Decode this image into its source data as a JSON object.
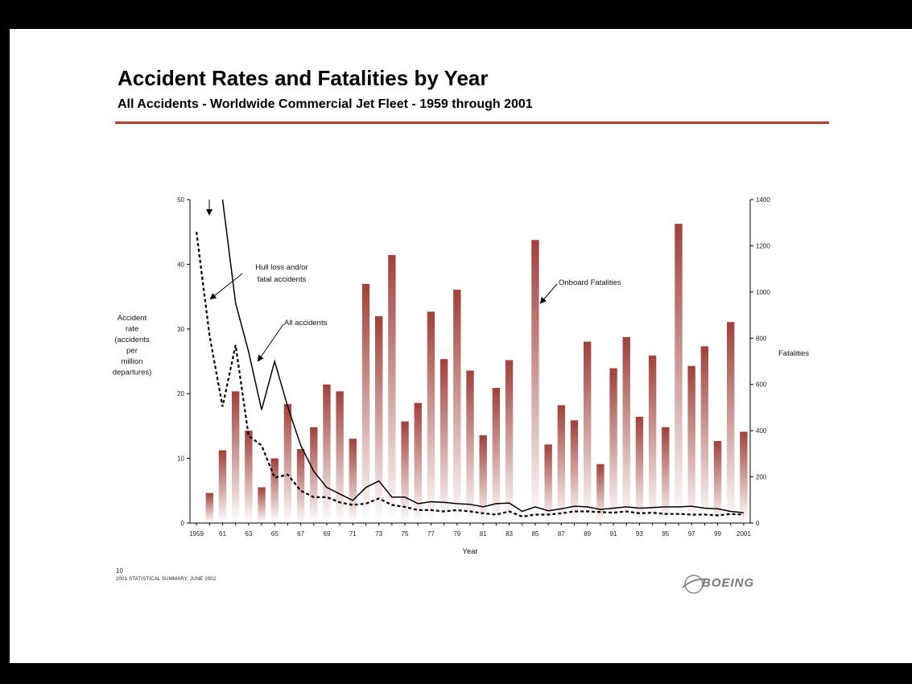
{
  "title": "Accident Rates and Fatalities by Year",
  "subtitle": "All Accidents - Worldwide Commercial Jet Fleet - 1959 through 2001",
  "footer": {
    "page": "10",
    "source": "2001 STATISTICAL SUMMARY, JUNE 2002",
    "logo_text": "BOEING"
  },
  "colors": {
    "accent": "#c0392b",
    "bar": "#a0413a",
    "line": "#000000"
  },
  "chart_data": {
    "type": "bar",
    "xlabel": "Year",
    "ylabel_left": [
      "Accident",
      "rate",
      "(accidents",
      "per",
      "million",
      "departures)"
    ],
    "ylabel_right": "Fatalities",
    "ylim_left": [
      0,
      50
    ],
    "ylim_right": [
      0,
      1400
    ],
    "yticks_left": [
      "0",
      "10",
      "20",
      "30",
      "40",
      "50"
    ],
    "yticks_right": [
      "0",
      "200",
      "400",
      "600",
      "800",
      "1000",
      "1200",
      "1400"
    ],
    "x": [
      1959,
      1960,
      1961,
      1962,
      1963,
      1964,
      1965,
      1966,
      1967,
      1968,
      1969,
      1970,
      1971,
      1972,
      1973,
      1974,
      1975,
      1976,
      1977,
      1978,
      1979,
      1980,
      1981,
      1982,
      1983,
      1984,
      1985,
      1986,
      1987,
      1988,
      1989,
      1990,
      1991,
      1992,
      1993,
      1994,
      1995,
      1996,
      1997,
      1998,
      1999,
      2000,
      2001
    ],
    "xtick_labels": [
      "1959",
      "61",
      "63",
      "65",
      "67",
      "69",
      "71",
      "73",
      "75",
      "77",
      "79",
      "81",
      "83",
      "85",
      "87",
      "89",
      "91",
      "93",
      "95",
      "97",
      "99",
      "2001"
    ],
    "series": [
      {
        "name": "Onboard Fatalities",
        "type": "bar",
        "axis": "right",
        "values": [
          0,
          130,
          315,
          570,
          400,
          155,
          280,
          515,
          320,
          415,
          600,
          570,
          365,
          1035,
          895,
          1160,
          440,
          520,
          915,
          710,
          1010,
          660,
          380,
          585,
          705,
          0,
          1225,
          340,
          510,
          445,
          785,
          255,
          670,
          805,
          460,
          725,
          415,
          1295,
          680,
          765,
          355,
          870,
          395
        ]
      },
      {
        "name": "All accidents",
        "type": "line",
        "axis": "left",
        "style": "solid",
        "values": [
          null,
          null,
          50,
          34,
          26.5,
          17.5,
          25,
          18,
          12,
          8,
          5.5,
          4.5,
          3.5,
          5.5,
          6.5,
          4,
          4,
          3,
          3.3,
          3.2,
          3,
          2.9,
          2.5,
          3,
          3.1,
          1.8,
          2.5,
          1.9,
          2.2,
          2.6,
          2.5,
          2.1,
          2.3,
          2.5,
          2.3,
          2.4,
          2.5,
          2.5,
          2.6,
          2.3,
          2.2,
          1.8,
          1.6
        ]
      },
      {
        "name": "Hull loss and/or fatal accidents",
        "type": "line",
        "axis": "left",
        "style": "dashed",
        "values": [
          45,
          29,
          18,
          27.5,
          13.5,
          12,
          7,
          7.5,
          5,
          4,
          4,
          3.2,
          2.8,
          3,
          3.8,
          2.8,
          2.5,
          2,
          2,
          1.8,
          2,
          1.8,
          1.5,
          1.3,
          1.8,
          1,
          1.3,
          1.3,
          1.5,
          1.8,
          1.8,
          1.7,
          1.6,
          1.8,
          1.5,
          1.6,
          1.4,
          1.4,
          1.3,
          1.3,
          1.2,
          1.4,
          1.3
        ]
      }
    ],
    "annotations": [
      {
        "lines": [
          "Hull loss and/or",
          "fatal accidents"
        ]
      },
      {
        "lines": [
          "All accidents"
        ]
      },
      {
        "lines": [
          "Onboard Fatalities"
        ]
      }
    ]
  }
}
